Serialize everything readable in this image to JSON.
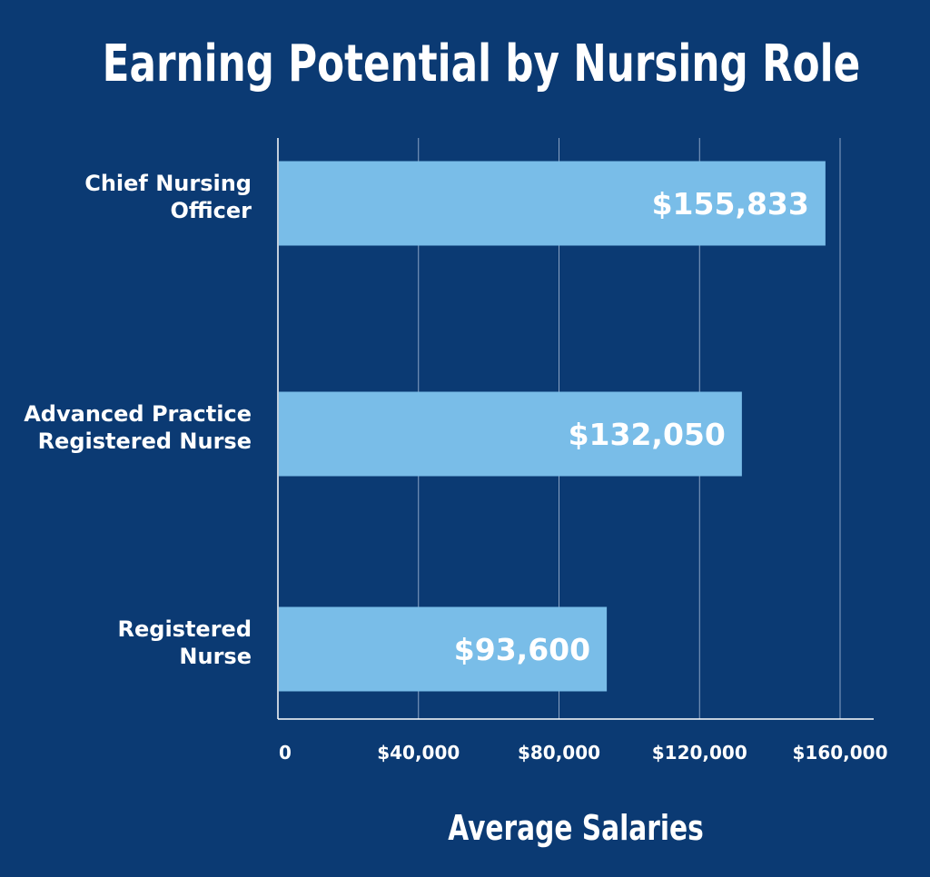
{
  "title": "Earning Potential by Nursing Role",
  "colors": {
    "background": "#0b3a73",
    "bar": "#79bde8",
    "grid": "#8aa3c4",
    "text": "#ffffff"
  },
  "chart_data": {
    "type": "bar",
    "orientation": "horizontal",
    "title": "Earning Potential by Nursing Role",
    "xlabel": "Average Salaries",
    "ylabel": "",
    "xlim": [
      0,
      160000
    ],
    "x_ticks": [
      0,
      40000,
      80000,
      120000,
      160000
    ],
    "x_tick_labels": [
      "0",
      "$40,000",
      "$80,000",
      "$120,000",
      "$160,000"
    ],
    "grid": true,
    "categories": [
      [
        "Chief Nursing",
        "Officer"
      ],
      [
        "Advanced Practice",
        "Registered Nurse"
      ],
      [
        "Registered",
        "Nurse"
      ]
    ],
    "values": [
      155833,
      132050,
      93600
    ],
    "data_labels": [
      "$155,833",
      "$132,050",
      "$93,600"
    ]
  }
}
